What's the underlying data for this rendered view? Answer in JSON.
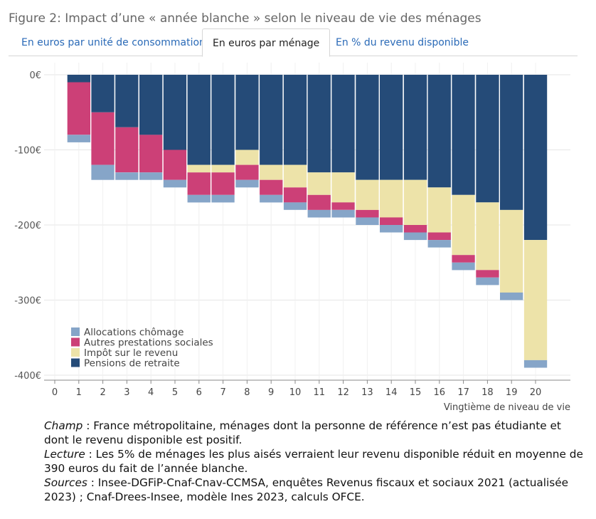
{
  "figure": {
    "title": "Figure 2: Impact d’une « année blanche » selon le niveau de vie des ménages"
  },
  "tabs": [
    {
      "label": "En euros par unité de consommation",
      "active": false
    },
    {
      "label": "En euros par ménage",
      "active": true
    },
    {
      "label": "En % du revenu disponible",
      "active": false
    }
  ],
  "colors": {
    "allocations": "#86a5c8",
    "prestations": "#cc4077",
    "impot": "#ede3a9",
    "pensions": "#254b78",
    "grid": "#e6e6e6",
    "axis": "#888888"
  },
  "chart_data": {
    "type": "bar",
    "stacked": true,
    "title": "",
    "xlabel": "Vingtième de niveau de vie",
    "ylabel": "",
    "xlim": [
      0,
      20
    ],
    "ylim": [
      -400,
      0
    ],
    "categories": [
      "1",
      "2",
      "3",
      "4",
      "5",
      "6",
      "7",
      "8",
      "9",
      "10",
      "11",
      "12",
      "13",
      "14",
      "15",
      "16",
      "17",
      "18",
      "19",
      "20"
    ],
    "x_ticks": [
      "0",
      "1",
      "2",
      "3",
      "4",
      "5",
      "6",
      "7",
      "8",
      "9",
      "10",
      "11",
      "12",
      "13",
      "14",
      "15",
      "16",
      "17",
      "18",
      "19",
      "20"
    ],
    "y_ticks": [
      {
        "value": 0,
        "label": "0€"
      },
      {
        "value": -100,
        "label": "-100€"
      },
      {
        "value": -200,
        "label": "-200€"
      },
      {
        "value": -300,
        "label": "-300€"
      },
      {
        "value": -400,
        "label": "-400€"
      }
    ],
    "legend_position": "bottom-left",
    "series": [
      {
        "name": "Pensions de retraite",
        "key": "pensions",
        "values": [
          -10,
          -50,
          -70,
          -80,
          -100,
          -120,
          -120,
          -100,
          -120,
          -120,
          -130,
          -130,
          -140,
          -140,
          -140,
          -150,
          -160,
          -170,
          -180,
          -220
        ]
      },
      {
        "name": "Impôt sur le revenu",
        "key": "impot",
        "values": [
          0,
          0,
          0,
          0,
          0,
          -10,
          -10,
          -20,
          -20,
          -30,
          -30,
          -40,
          -40,
          -50,
          -60,
          -60,
          -80,
          -90,
          -110,
          -160
        ]
      },
      {
        "name": "Autres prestations sociales",
        "key": "prestations",
        "values": [
          -70,
          -70,
          -60,
          -50,
          -40,
          -30,
          -30,
          -20,
          -20,
          -20,
          -20,
          -10,
          -10,
          -10,
          -10,
          -10,
          -10,
          -10,
          0,
          0
        ]
      },
      {
        "name": "Allocations chômage",
        "key": "allocations",
        "values": [
          -10,
          -20,
          -10,
          -10,
          -10,
          -10,
          -10,
          -10,
          -10,
          -10,
          -10,
          -10,
          -10,
          -10,
          -10,
          -10,
          -10,
          -10,
          -10,
          -10
        ]
      }
    ],
    "legend": [
      {
        "name": "Allocations chômage",
        "key": "allocations"
      },
      {
        "name": "Autres prestations sociales",
        "key": "prestations"
      },
      {
        "name": "Impôt sur le revenu",
        "key": "impot"
      },
      {
        "name": "Pensions de retraite",
        "key": "pensions"
      }
    ]
  },
  "notes": {
    "champ_label": "Champ",
    "champ_text": " : France métropolitaine, ménages dont la personne de référence n’est pas étudiante et dont le revenu disponible est positif.",
    "lecture_label": "Lecture",
    "lecture_text": " : Les 5% de ménages les plus aisés verraient leur revenu disponible réduit en moyenne de 390 euros du fait de l’année blanche.",
    "sources_label": "Sources",
    "sources_text": " : Insee-DGFiP-Cnaf-Cnav-CCMSA, enquêtes Revenus fiscaux et sociaux 2021 (actualisée 2023) ; Cnaf-Drees-Insee, modèle Ines 2023, calculs OFCE."
  }
}
